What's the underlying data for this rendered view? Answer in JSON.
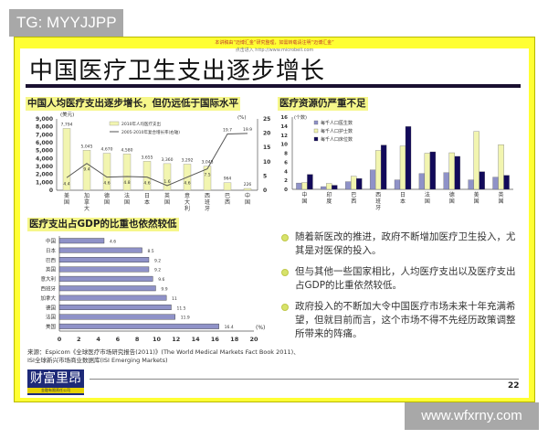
{
  "watermark_top": "TG: MYYJJPP",
  "watermark_bottom": "www.wfxrny.com",
  "slide": {
    "notice": "本讲稿由“迈博汇金”研究整理，如需转载请注明“迈博汇金”",
    "notice2": "点击进入 http://www.microbell.com",
    "title": "中国医疗卫生支出逐步增长",
    "page_number": "22",
    "source_line1": "来源：Espicom《全球医疗市场研究报告(2011)》(The World Medical Markets Fact Book 2011)、",
    "source_line2": "ISI全球新兴市场商业数据库(ISI Emerging Markets)",
    "logo": "财富里昂",
    "logo_sub": "金融有限责任公司",
    "bullets": [
      "随着新医改的推进，政府不断增加医疗卫生投入，尤其是对医保的投入。",
      "但与其他一些国家相比，人均医疗支出以及医疗支出占GDP的比重依然较低。",
      "政府投入的不断加大令中国医疗市场未来十年充满希望，但就目前而言，这个市场不得不先经历政策调整所带来的阵痛。"
    ]
  },
  "colors": {
    "frame": "#ffff33",
    "bar_yellow": "#f2f5b0",
    "bar_blue": "#8f92c8",
    "bar_navy": "#120a5a",
    "highlight": "#f6f78a"
  },
  "chart_data": [
    {
      "type": "bar+line",
      "title": "中国人均医疗支出逐步增长，但仍远低于国际水平",
      "categories": [
        "美国",
        "加拿大",
        "德国",
        "法国",
        "日本",
        "英国",
        "意大利",
        "西班牙",
        "巴西",
        "中国"
      ],
      "ylabel": "(美元)",
      "y2label": "(%)",
      "ylim": [
        0,
        9000
      ],
      "y2lim": [
        0,
        25
      ],
      "yticks": [
        "0",
        "1,000",
        "2,000",
        "3,000",
        "4,000",
        "5,000",
        "6,000",
        "7,000",
        "8,000",
        "9,000"
      ],
      "y2ticks": [
        "0",
        "5",
        "10",
        "15",
        "20",
        "25"
      ],
      "series": [
        {
          "name": "2010年人均医疗支出",
          "type": "bar",
          "values": [
            7794,
            5045,
            4670,
            4580,
            3655,
            3360,
            3292,
            3048,
            964,
            226
          ],
          "labels": [
            "7,794",
            "5,045",
            "4,670",
            "4,580",
            "3,655",
            "3,360",
            "3,292",
            "3,048",
            "964",
            "226"
          ]
        },
        {
          "name": "2005-2010年复合增长率(右轴)",
          "type": "line",
          "axis": "right",
          "values": [
            4.4,
            9.4,
            4.6,
            4.8,
            4.6,
            1.6,
            4.6,
            7.5,
            19.7,
            19.9
          ]
        }
      ],
      "legend": "top-center"
    },
    {
      "type": "bar",
      "title": "医疗资源仍严重不足",
      "ylabel": "(个数)",
      "ylim": [
        0,
        16
      ],
      "yticks": [
        "0",
        "2",
        "4",
        "6",
        "8",
        "10",
        "12",
        "14",
        "16"
      ],
      "categories": [
        "中国",
        "印度",
        "巴西",
        "西班牙",
        "日本",
        "法国",
        "德国",
        "美国",
        "英国"
      ],
      "series": [
        {
          "name": "每千人口医生数",
          "values": [
            1.4,
            0.6,
            1.7,
            4.3,
            2.1,
            3.5,
            3.7,
            2.1,
            2.7
          ]
        },
        {
          "name": "每千人口护士数",
          "values": [
            1.5,
            1.3,
            2.9,
            8.6,
            9.6,
            8.0,
            8.1,
            12.8,
            9.9
          ]
        },
        {
          "name": "每千人口床位数",
          "values": [
            3.3,
            0.9,
            2.4,
            9.8,
            13.9,
            8.3,
            7.3,
            3.9,
            3.1
          ]
        }
      ],
      "legend": "top-left"
    },
    {
      "type": "horizontal-bar",
      "title": "医疗支出占GDP的比重也依然较低",
      "unit": "(%)",
      "xlim": [
        0,
        20
      ],
      "xticks": [
        "0",
        "2",
        "4",
        "6",
        "8",
        "10",
        "12",
        "14",
        "16",
        "18",
        "20"
      ],
      "categories": [
        "中国",
        "日本",
        "巴西",
        "英国",
        "意大利",
        "西班牙",
        "加拿大",
        "德国",
        "法国",
        "美国"
      ],
      "values": [
        4.6,
        8.5,
        9.2,
        9.2,
        9.6,
        9.9,
        11,
        11.5,
        11.9,
        16.4
      ],
      "labels": [
        "4.6",
        "8.5",
        "9.2",
        "9.2",
        "9.6",
        "9.9",
        "11",
        "11.5",
        "11.9",
        "16.4"
      ]
    }
  ]
}
